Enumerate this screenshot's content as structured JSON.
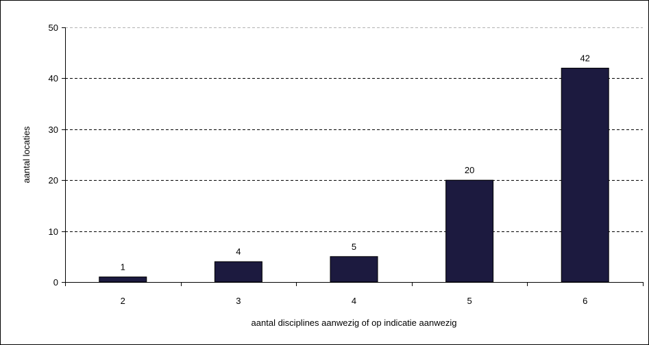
{
  "chart_data": {
    "type": "bar",
    "categories": [
      "2",
      "3",
      "4",
      "5",
      "6"
    ],
    "values": [
      1,
      4,
      5,
      20,
      42
    ],
    "data_labels": [
      "1",
      "4",
      "5",
      "20",
      "42"
    ],
    "title": "",
    "xlabel": "aantal disciplines aanwezig of op indicatie aanwezig",
    "ylabel": "aantal locaties",
    "ylim": [
      0,
      50
    ],
    "yticks": [
      0,
      10,
      20,
      30,
      40,
      50
    ],
    "ytick_labels": [
      "0",
      "10",
      "20",
      "30",
      "40",
      "50"
    ],
    "grid": "horizontal-dashed",
    "legend": "none"
  },
  "colors": {
    "bar_fill": "#1c1a3f",
    "grid_line": "#000000",
    "top_grid_line": "#b0b0b0",
    "axis": "#000000"
  }
}
